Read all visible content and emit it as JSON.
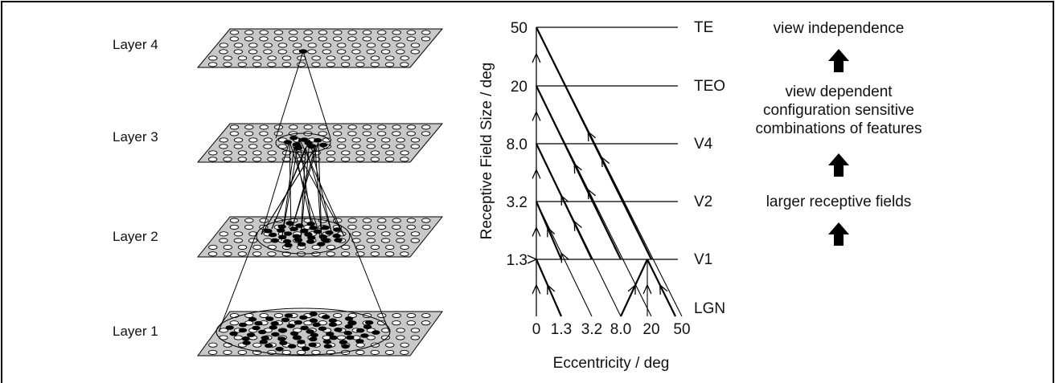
{
  "layers": {
    "labels": [
      "Layer 4",
      "Layer 3",
      "Layer 2",
      "Layer 1"
    ]
  },
  "plot": {
    "y_axis_label": "Receptive Field Size / deg",
    "x_axis_label": "Eccentricity / deg",
    "y_ticks": [
      "50",
      "20",
      "8.0",
      "3.2",
      "1.3"
    ],
    "x_ticks": [
      "0",
      "1.3",
      "3.2",
      "8.0",
      "20",
      "50"
    ],
    "areas": [
      "TE",
      "TEO",
      "V4",
      "V2",
      "V1",
      "LGN"
    ]
  },
  "properties": {
    "top": "view independence",
    "middle": [
      "view dependent",
      "configuration sensitive",
      "combinations of features"
    ],
    "bottom": "larger receptive fields"
  },
  "colors": {
    "plane_fill": "#c8c8c8",
    "cell_dark": "#000000",
    "line": "#000000"
  },
  "icons": [
    "up-arrow-icon"
  ]
}
